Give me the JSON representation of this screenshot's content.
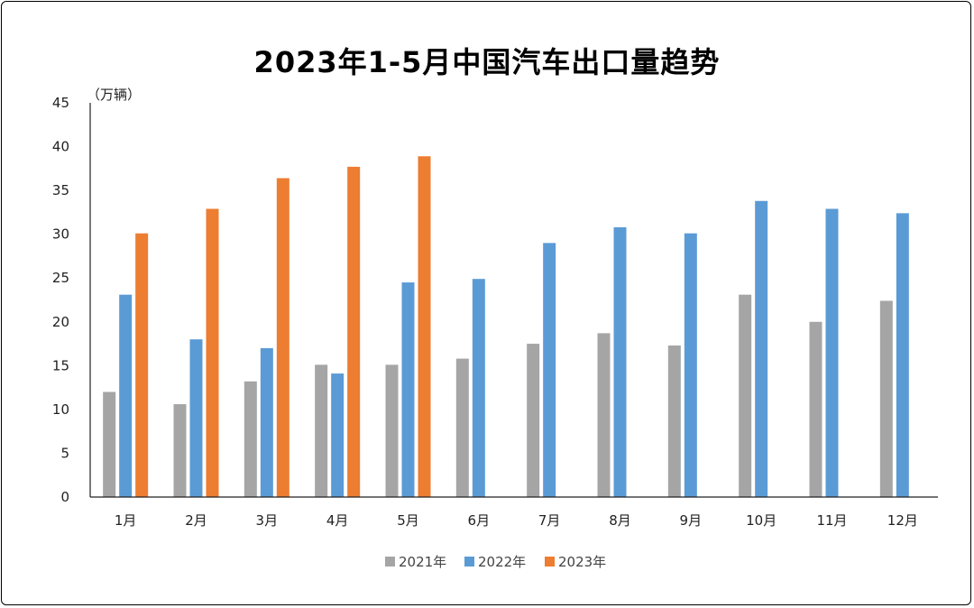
{
  "chart_data": {
    "type": "bar",
    "title": "2023年1-5月中国汽车出口量趋势",
    "ylabel": "（万辆）",
    "xlabel": "",
    "ylim": [
      0,
      45
    ],
    "yticks": [
      0,
      5,
      10,
      15,
      20,
      25,
      30,
      35,
      40,
      45
    ],
    "categories": [
      "1月",
      "2月",
      "3月",
      "4月",
      "5月",
      "6月",
      "7月",
      "8月",
      "9月",
      "10月",
      "11月",
      "12月"
    ],
    "series": [
      {
        "name": "2021年",
        "color": "#A5A5A5",
        "values": [
          12.0,
          10.6,
          13.2,
          15.1,
          15.1,
          15.8,
          17.5,
          18.7,
          17.3,
          23.1,
          20.0,
          22.4
        ]
      },
      {
        "name": "2022年",
        "color": "#5B9BD5",
        "values": [
          23.1,
          18.0,
          17.0,
          14.1,
          24.5,
          24.9,
          29.0,
          30.8,
          30.1,
          33.8,
          32.9,
          32.4
        ]
      },
      {
        "name": "2023年",
        "color": "#ED7D31",
        "values": [
          30.1,
          32.9,
          36.4,
          37.7,
          38.9,
          null,
          null,
          null,
          null,
          null,
          null,
          null
        ]
      }
    ],
    "legend_position": "bottom",
    "grid": false
  }
}
